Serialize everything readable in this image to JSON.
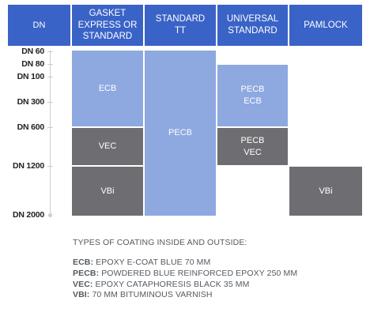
{
  "header": {
    "dn": "DN",
    "gasket": "GASKET\nEXPRESS OR\nSTANDARD",
    "standard_tt": "STANDARD\nTT",
    "universal": "UNIVERSAL\nSTANDARD",
    "pamlock": "PAMLOCK"
  },
  "dn_axis": [
    "DN 60",
    "DN 80",
    "DN 100",
    "DN 300",
    "DN 600",
    "DN 1200",
    "DN 2000"
  ],
  "cells": {
    "gasket_ecb": "ECB",
    "gasket_vec": "VEC",
    "gasket_vbi": "VBi",
    "standard_tt_pecb": "PECB",
    "universal_pecb_ecb": "PECB\nECB",
    "universal_pecb_vec": "PECB\nVEC",
    "pamlock_vbi": "VBi"
  },
  "colors": {
    "header": "#3a63c7",
    "light_blue": "#8ea8e0",
    "gray": "#6e6e72"
  },
  "legend": {
    "title": "TYPES OF COATING INSIDE AND OUTSIDE:",
    "items": [
      {
        "code": "ECB:",
        "text": "EPOXY E-COAT BLUE 70 MM"
      },
      {
        "code": "PECB:",
        "text": "POWDERED BLUE REINFORCED EPOXY 250 MM"
      },
      {
        "code": "VEC:",
        "text": "EPOXY CATAPHORESIS BLACK 35 MM"
      },
      {
        "code": "VBI:",
        "text": "70 MM BITUMINOUS VARNISH"
      }
    ]
  }
}
